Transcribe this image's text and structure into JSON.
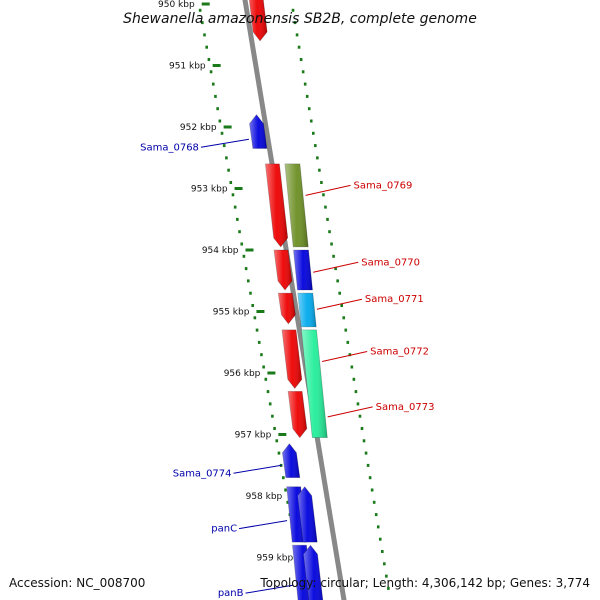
{
  "title": "Shewanella amazonensis SB2B, complete genome",
  "footer": {
    "accession": "Accession: NC_008700",
    "summary": "Topology: circular; Length: 4,306,142 bp; Genes: 3,774"
  },
  "colors": {
    "tick": "#1a7a1a",
    "backbone": "#888888",
    "label_forward": "#cc0000",
    "label_reverse": "#0000aa"
  },
  "ticks": [
    {
      "kbp": 950,
      "label": "950 kbp"
    },
    {
      "kbp": 951,
      "label": "951 kbp"
    },
    {
      "kbp": 952,
      "label": "952 kbp"
    },
    {
      "kbp": 953,
      "label": "953 kbp"
    },
    {
      "kbp": 954,
      "label": "954 kbp"
    },
    {
      "kbp": 955,
      "label": "955 kbp"
    },
    {
      "kbp": 956,
      "label": "956 kbp"
    },
    {
      "kbp": 957,
      "label": "957 kbp"
    },
    {
      "kbp": 958,
      "label": "958 kbp"
    },
    {
      "kbp": 959,
      "label": "959 kbp"
    }
  ],
  "genes": [
    {
      "name": "",
      "lane": "inner",
      "start": 949.6,
      "end": 950.6,
      "color": "#ee0000",
      "dir": "down"
    },
    {
      "name": "Sama_0768",
      "lane": "left",
      "start": 951.8,
      "end": 952.35,
      "color": "#0000dd",
      "dir": "up"
    },
    {
      "name": "",
      "lane": "inner",
      "start": 952.6,
      "end": 953.95,
      "color": "#ee0000",
      "dir": "down"
    },
    {
      "name": "Sama_0769",
      "lane": "outer",
      "start": 952.6,
      "end": 953.95,
      "color": "#6b8e23",
      "dir": "none"
    },
    {
      "name": "",
      "lane": "inner",
      "start": 954.0,
      "end": 954.65,
      "color": "#ee0000",
      "dir": "down"
    },
    {
      "name": "Sama_0770",
      "lane": "outer",
      "start": 954.0,
      "end": 954.65,
      "color": "#0000dd",
      "dir": "none"
    },
    {
      "name": "",
      "lane": "inner",
      "start": 954.7,
      "end": 955.2,
      "color": "#ee0000",
      "dir": "down"
    },
    {
      "name": "Sama_0771",
      "lane": "outer",
      "start": 954.7,
      "end": 955.25,
      "color": "#00aaee",
      "dir": "none"
    },
    {
      "name": "",
      "lane": "inner",
      "start": 955.3,
      "end": 956.25,
      "color": "#ee0000",
      "dir": "down"
    },
    {
      "name": "Sama_0772",
      "lane": "outer",
      "start": 955.3,
      "end": 957.05,
      "color": "#22ee99",
      "dir": "none"
    },
    {
      "name": "",
      "lane": "inner",
      "start": 956.3,
      "end": 957.05,
      "color": "#ee0000",
      "dir": "down"
    },
    {
      "name": "Sama_0774",
      "lane": "left",
      "start": 957.15,
      "end": 957.7,
      "color": "#0000dd",
      "dir": "up"
    },
    {
      "name": "panC",
      "lane": "left",
      "start": 957.85,
      "end": 958.75,
      "color": "#0000dd",
      "dir": "none"
    },
    {
      "name": "",
      "lane": "inner",
      "start": 957.85,
      "end": 958.75,
      "color": "#0000dd",
      "dir": "up"
    },
    {
      "name": "panB",
      "lane": "left",
      "start": 958.8,
      "end": 959.9,
      "color": "#0000dd",
      "dir": "none"
    },
    {
      "name": "",
      "lane": "inner",
      "start": 958.8,
      "end": 959.9,
      "color": "#0000dd",
      "dir": "up"
    }
  ],
  "labels": [
    {
      "text": "Sama_0768",
      "side": "left",
      "kbp": 952.2,
      "strand": "reverse"
    },
    {
      "text": "Sama_0769",
      "side": "right",
      "kbp": 952.95,
      "strand": "forward"
    },
    {
      "text": "Sama_0770",
      "side": "right",
      "kbp": 954.2,
      "strand": "forward"
    },
    {
      "text": "Sama_0771",
      "side": "right",
      "kbp": 954.8,
      "strand": "forward"
    },
    {
      "text": "Sama_0772",
      "side": "right",
      "kbp": 955.65,
      "strand": "forward"
    },
    {
      "text": "Sama_0773",
      "side": "right",
      "kbp": 956.55,
      "strand": "forward"
    },
    {
      "text": "Sama_0774",
      "side": "left",
      "kbp": 957.5,
      "strand": "reverse"
    },
    {
      "text": "panC",
      "side": "left",
      "kbp": 958.4,
      "strand": "reverse"
    },
    {
      "text": "panB",
      "side": "left",
      "kbp": 959.45,
      "strand": "reverse"
    }
  ]
}
